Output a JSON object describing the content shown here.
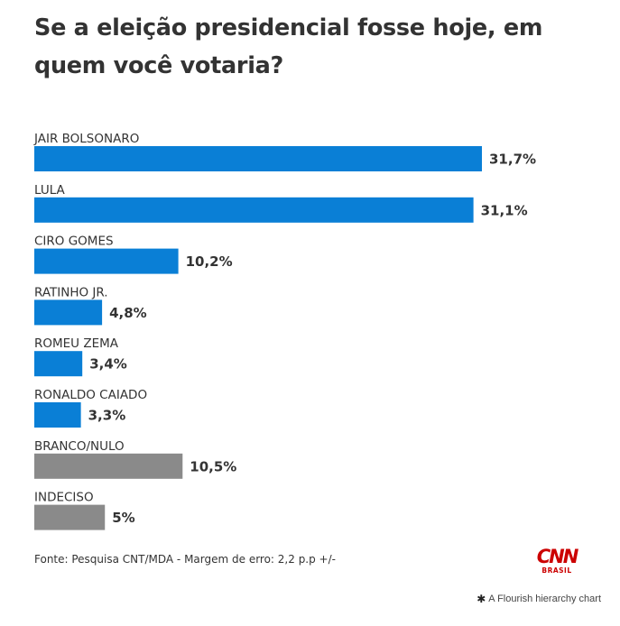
{
  "title": "Se a eleição presidencial fosse hoje, em quem você votaria?",
  "source": "Fonte: Pesquisa CNT/MDA - Margem de erro: 2,2 p.p +/-",
  "logo": {
    "word": "CNN",
    "sub": "BRASIL",
    "color": "#cc0000"
  },
  "credit": {
    "icon": "flourish-asterisk-icon",
    "text": "A Flourish hierarchy chart"
  },
  "chart_data": {
    "type": "bar",
    "orientation": "horizontal",
    "title": "Se a eleição presidencial fosse hoje, em quem você votaria?",
    "xlim": [
      0,
      31.7
    ],
    "grid": false,
    "categories": [
      "JAIR BOLSONARO",
      "LULA",
      "CIRO GOMES",
      "RATINHO JR.",
      "ROMEU ZEMA",
      "RONALDO CAIADO",
      "BRANCO/NULO",
      "INDECISO"
    ],
    "values": [
      31.7,
      31.1,
      10.2,
      4.8,
      3.4,
      3.3,
      10.5,
      5
    ],
    "value_labels": [
      "31,7%",
      "31,1%",
      "10,2%",
      "4,8%",
      "3,4%",
      "3,3%",
      "10,5%",
      "5%"
    ],
    "colors": [
      "#0a7fd6",
      "#0a7fd6",
      "#0a7fd6",
      "#0a7fd6",
      "#0a7fd6",
      "#0a7fd6",
      "#8a8a8a",
      "#8a8a8a"
    ]
  }
}
